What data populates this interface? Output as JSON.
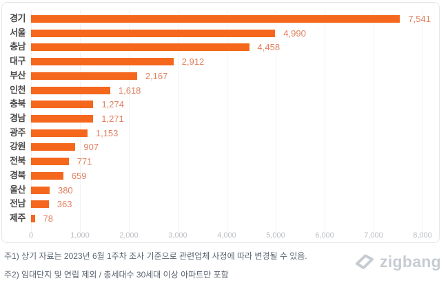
{
  "chart_data": {
    "type": "bar",
    "orientation": "horizontal",
    "title": "",
    "categories": [
      "경기",
      "서울",
      "충남",
      "대구",
      "부산",
      "인천",
      "충북",
      "경남",
      "광주",
      "강원",
      "전북",
      "경북",
      "울산",
      "전남",
      "제주"
    ],
    "values": [
      7541,
      4990,
      4458,
      2912,
      2167,
      1618,
      1274,
      1271,
      1153,
      907,
      771,
      659,
      380,
      363,
      78
    ],
    "value_labels": [
      "7,541",
      "4,990",
      "4,458",
      "2,912",
      "2,167",
      "1,618",
      "1,274",
      "1,271",
      "1,153",
      "907",
      "771",
      "659",
      "380",
      "363",
      "78"
    ],
    "xlabel": "",
    "ylabel": "",
    "xlim": [
      0,
      8000
    ],
    "x_ticks": [
      "0",
      "1,000",
      "2,000",
      "3,000",
      "4,000",
      "5,000",
      "6,000",
      "7,000",
      "8,000"
    ],
    "grid": true,
    "legend": "none",
    "bar_color": "#f4671c",
    "value_label_color": "#df8060"
  },
  "footer": {
    "note1": "주1) 상기 자료는 2023년 6월 1주차 조사 기준으로 관련업체 사정에 따라 변경될 수 있음.",
    "note2": "주2) 임대단지 및 연립 제외 / 총세대수 30세대 이상 아파트만 포함",
    "logo_text": "zigbang"
  }
}
